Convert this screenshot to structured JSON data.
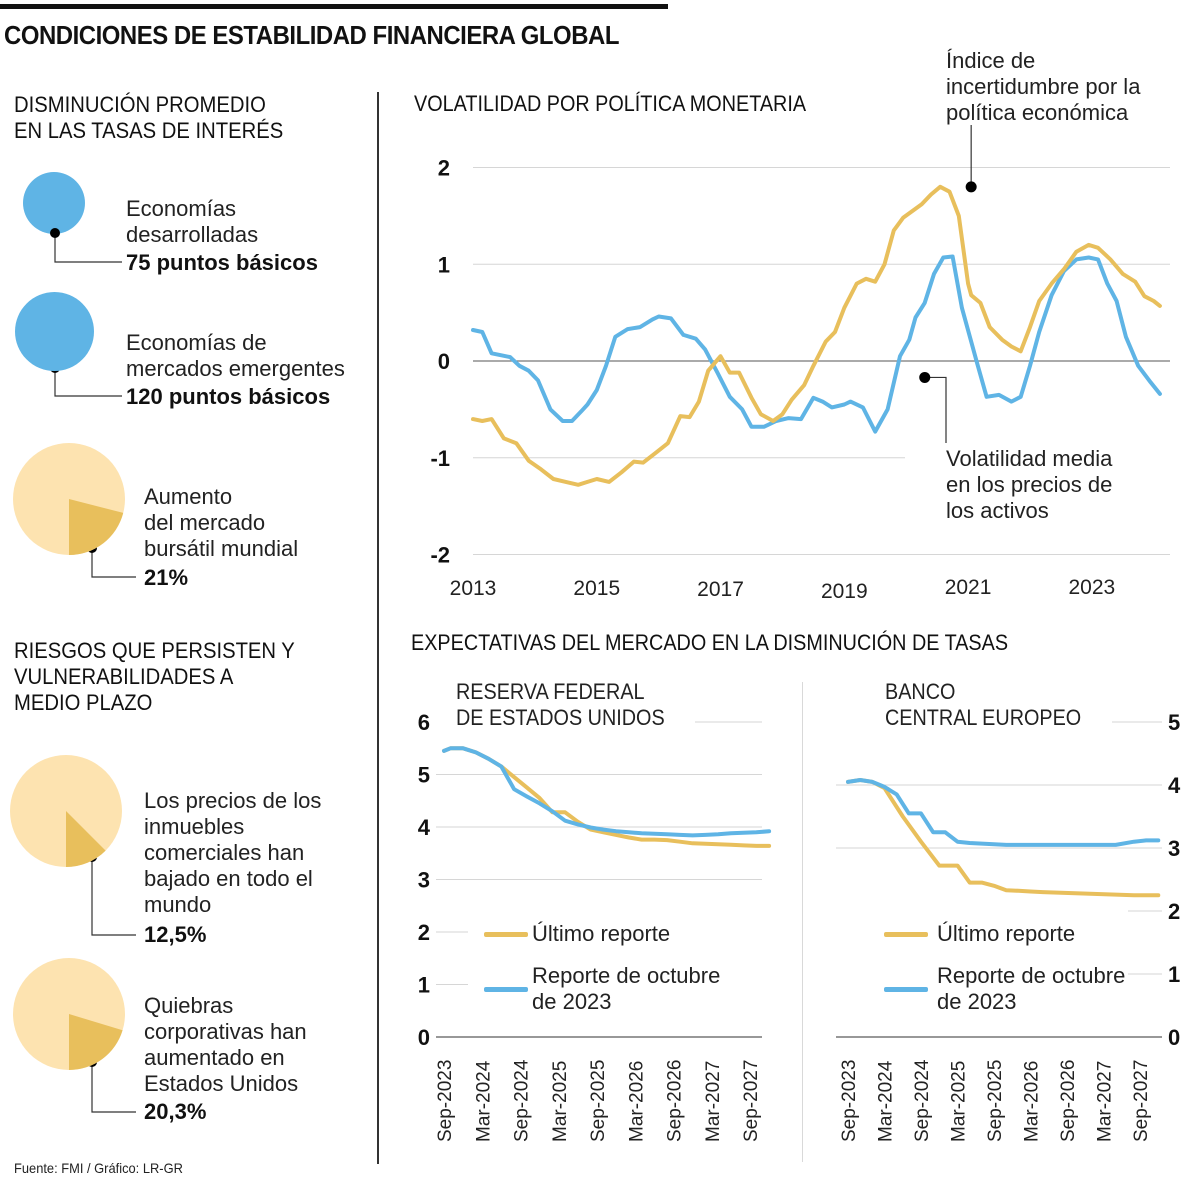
{
  "title": "CONDICIONES DE ESTABILIDAD FINANCIERA GLOBAL",
  "source": "Fuente: FMI / Gráfico: LR-GR",
  "colors": {
    "blue": "#5fb4e5",
    "gold": "#e8bf5c",
    "pie_light": "#fde3b0",
    "pie_dark": "#e8bf5c",
    "grid": "#d6d6d6",
    "zero_line": "#777777",
    "text": "#111111"
  },
  "left_panel": {
    "section1": {
      "title": "DISMINUCIÓN PROMEDIO\nEN LAS TASAS DE INTERÉS",
      "items": [
        {
          "label": "Economías\ndesarrolladas",
          "value": "75 puntos básicos",
          "basis_points": 75
        },
        {
          "label": "Economías de\nmercados emergentes",
          "value": "120 puntos básicos",
          "basis_points": 120
        }
      ]
    },
    "stock_item": {
      "label": "Aumento\ndel mercado\nbursátil mundial",
      "value": "21%",
      "percent": 21
    },
    "section2": {
      "title": "RIESGOS QUE PERSISTEN Y\nVULNERABILIDADES A\nMEDIO PLAZO",
      "items": [
        {
          "label": "Los precios de los\ninmuebles\ncomerciales han\nbajado en todo el\nmundo",
          "value": "12,5%",
          "percent": 12.5
        },
        {
          "label": "Quiebras\ncorporativas han\naumentado en\nEstados Unidos",
          "value": "20,3%",
          "percent": 20.3
        }
      ]
    }
  },
  "chart_data": [
    {
      "type": "line",
      "title": "VOLATILIDAD POR POLÍTICA MONETARIA",
      "xlabel": "",
      "ylabel": "",
      "xlim": [
        2013.0,
        2024.15
      ],
      "ylim": [
        -2,
        2
      ],
      "yticks": [
        2,
        1,
        0,
        -1,
        -2
      ],
      "ytick_labels": [
        "2",
        "1",
        "0",
        "-1",
        "-2"
      ],
      "xticks": [
        2013,
        2015,
        2017,
        2019,
        2021,
        2023
      ],
      "xtick_labels": [
        "2013",
        "2015",
        "2017",
        "2019",
        "2021",
        "2023"
      ],
      "grid": true,
      "annotations": [
        {
          "text": "Índice de\nincertidumbre por la\npolítica económica",
          "series": "Índice de incertidumbre por la política económica",
          "x": 2021.05,
          "y": 1.8
        },
        {
          "text": "Volatilidad media\nen los precios de\nlos activos",
          "series": "Volatilidad media en los precios de los activos",
          "x": 2020.3,
          "y": -0.17
        }
      ],
      "series": [
        {
          "name": "Volatilidad media en los precios de los activos",
          "color": "#5fb4e5",
          "x": [
            2013.0,
            2013.15,
            2013.3,
            2013.45,
            2013.6,
            2013.75,
            2013.9,
            2014.05,
            2014.25,
            2014.45,
            2014.6,
            2014.75,
            2014.85,
            2015.0,
            2015.15,
            2015.3,
            2015.5,
            2015.7,
            2015.9,
            2016.0,
            2016.2,
            2016.4,
            2016.6,
            2016.75,
            2016.95,
            2017.15,
            2017.35,
            2017.5,
            2017.7,
            2017.9,
            2018.1,
            2018.3,
            2018.5,
            2018.65,
            2018.8,
            2019.0,
            2019.1,
            2019.3,
            2019.5,
            2019.7,
            2019.9,
            2020.05,
            2020.15,
            2020.3,
            2020.45,
            2020.6,
            2020.75,
            2020.9,
            2021.05,
            2021.15,
            2021.3,
            2021.5,
            2021.7,
            2021.85,
            2022.0,
            2022.15,
            2022.35,
            2022.55,
            2022.75,
            2022.95,
            2023.1,
            2023.25,
            2023.4,
            2023.55,
            2023.75,
            2023.95,
            2024.1
          ],
          "values": [
            0.32,
            0.3,
            0.08,
            0.06,
            0.04,
            -0.05,
            -0.1,
            -0.2,
            -0.5,
            -0.62,
            -0.62,
            -0.52,
            -0.45,
            -0.3,
            -0.05,
            0.25,
            0.33,
            0.35,
            0.43,
            0.46,
            0.44,
            0.27,
            0.23,
            0.12,
            -0.12,
            -0.37,
            -0.5,
            -0.68,
            -0.68,
            -0.62,
            -0.59,
            -0.6,
            -0.38,
            -0.42,
            -0.48,
            -0.45,
            -0.42,
            -0.48,
            -0.73,
            -0.5,
            0.05,
            0.22,
            0.45,
            0.6,
            0.9,
            1.07,
            1.08,
            0.55,
            0.2,
            -0.03,
            -0.37,
            -0.35,
            -0.42,
            -0.37,
            -0.05,
            0.3,
            0.68,
            0.93,
            1.05,
            1.07,
            1.05,
            0.8,
            0.62,
            0.25,
            -0.05,
            -0.22,
            -0.34
          ]
        },
        {
          "name": "Índice de incertidumbre por la política económica",
          "color": "#e8bf5c",
          "x": [
            2013.0,
            2013.15,
            2013.3,
            2013.5,
            2013.7,
            2013.9,
            2014.1,
            2014.3,
            2014.5,
            2014.7,
            2014.85,
            2015.0,
            2015.2,
            2015.4,
            2015.6,
            2015.75,
            2015.95,
            2016.15,
            2016.35,
            2016.5,
            2016.65,
            2016.8,
            2017.0,
            2017.15,
            2017.3,
            2017.5,
            2017.65,
            2017.85,
            2018.0,
            2018.15,
            2018.35,
            2018.5,
            2018.7,
            2018.85,
            2019.0,
            2019.2,
            2019.35,
            2019.5,
            2019.65,
            2019.8,
            2019.95,
            2020.1,
            2020.25,
            2020.4,
            2020.55,
            2020.7,
            2020.85,
            2021.0,
            2021.05,
            2021.2,
            2021.35,
            2021.55,
            2021.7,
            2021.85,
            2022.0,
            2022.15,
            2022.35,
            2022.55,
            2022.75,
            2022.95,
            2023.1,
            2023.3,
            2023.5,
            2023.7,
            2023.85,
            2024.0,
            2024.1
          ],
          "values": [
            -0.6,
            -0.62,
            -0.6,
            -0.8,
            -0.85,
            -1.03,
            -1.12,
            -1.22,
            -1.25,
            -1.28,
            -1.25,
            -1.22,
            -1.25,
            -1.15,
            -1.04,
            -1.05,
            -0.95,
            -0.85,
            -0.57,
            -0.58,
            -0.42,
            -0.1,
            0.05,
            -0.12,
            -0.12,
            -0.38,
            -0.55,
            -0.62,
            -0.55,
            -0.4,
            -0.25,
            -0.05,
            0.2,
            0.3,
            0.55,
            0.8,
            0.85,
            0.82,
            1.0,
            1.35,
            1.48,
            1.55,
            1.62,
            1.72,
            1.8,
            1.75,
            1.5,
            0.8,
            0.68,
            0.6,
            0.35,
            0.22,
            0.15,
            0.1,
            0.35,
            0.62,
            0.8,
            0.95,
            1.13,
            1.2,
            1.17,
            1.05,
            0.9,
            0.82,
            0.67,
            0.62,
            0.57
          ]
        }
      ]
    },
    {
      "type": "line",
      "title": "RESERVA FEDERAL\nDE ESTADOS UNIDOS",
      "group_title": "EXPECTATIVAS DEL MERCADO EN LA DISMINUCIÓN DE TASAS",
      "ylim": [
        0,
        6
      ],
      "yticks": [
        6,
        5,
        4,
        3,
        2,
        1,
        0
      ],
      "ytick_labels": [
        "6",
        "5",
        "4",
        "3",
        "2",
        "1",
        "0"
      ],
      "categories": [
        "Sep-2023",
        "Mar-2024",
        "Sep-2024",
        "Mar-2025",
        "Sep-2025",
        "Mar-2026",
        "Sep-2026",
        "Mar-2027",
        "Sep-2027"
      ],
      "x_range_months": [
        0,
        52
      ],
      "grid": true,
      "legend": "bottom-center",
      "series": [
        {
          "name": "Último reporte",
          "color": "#e8bf5c",
          "x_months": [
            0,
            1,
            3,
            5,
            7,
            9,
            11,
            13,
            15,
            17,
            19,
            21,
            23,
            25,
            27,
            29,
            31,
            33,
            35,
            37,
            39,
            41,
            43,
            45,
            47,
            49,
            51
          ],
          "values": [
            5.45,
            5.5,
            5.5,
            5.42,
            5.3,
            5.15,
            4.95,
            4.75,
            4.55,
            4.28,
            4.28,
            4.1,
            3.95,
            3.9,
            3.85,
            3.8,
            3.76,
            3.76,
            3.75,
            3.72,
            3.69,
            3.68,
            3.67,
            3.66,
            3.65,
            3.64,
            3.64
          ]
        },
        {
          "name": "Reporte de octubre de 2023",
          "color": "#5fb4e5",
          "x_months": [
            0,
            1,
            3,
            5,
            7,
            9,
            11,
            13,
            15,
            17,
            19,
            21,
            23,
            25,
            27,
            29,
            31,
            33,
            35,
            37,
            39,
            41,
            43,
            45,
            47,
            49,
            51
          ],
          "values": [
            5.45,
            5.5,
            5.5,
            5.42,
            5.3,
            5.15,
            4.72,
            4.58,
            4.45,
            4.3,
            4.12,
            4.05,
            3.99,
            3.95,
            3.92,
            3.9,
            3.88,
            3.87,
            3.86,
            3.85,
            3.84,
            3.85,
            3.86,
            3.88,
            3.89,
            3.9,
            3.92
          ]
        }
      ]
    },
    {
      "type": "line",
      "title": "BANCO\nCENTRAL EUROPEO",
      "ylim": [
        0,
        5
      ],
      "yticks": [
        5,
        4,
        3,
        2,
        1,
        0
      ],
      "ytick_labels": [
        "5",
        "4",
        "3",
        "2",
        "1",
        "0"
      ],
      "categories": [
        "Sep-2023",
        "Mar-2024",
        "Sep-2024",
        "Mar-2025",
        "Sep-2025",
        "Mar-2026",
        "Sep-2026",
        "Mar-2027",
        "Sep-2027"
      ],
      "x_range_months": [
        0,
        52
      ],
      "grid": true,
      "legend": "bottom-center",
      "series": [
        {
          "name": "Último reporte",
          "color": "#e8bf5c",
          "x_months": [
            0,
            2,
            4,
            6,
            9,
            12,
            15,
            18,
            20,
            22,
            24,
            26,
            28,
            30,
            32,
            35,
            38,
            41,
            44,
            47,
            49,
            51
          ],
          "values": [
            4.05,
            4.08,
            4.05,
            3.95,
            3.5,
            3.1,
            2.72,
            2.72,
            2.45,
            2.45,
            2.4,
            2.33,
            2.32,
            2.31,
            2.3,
            2.29,
            2.28,
            2.27,
            2.26,
            2.25,
            2.25,
            2.25
          ]
        },
        {
          "name": "Reporte de octubre de 2023",
          "color": "#5fb4e5",
          "x_months": [
            0,
            2,
            4,
            6,
            8,
            10,
            12,
            14,
            16,
            18,
            20,
            22,
            24,
            26,
            28,
            30,
            32,
            35,
            38,
            41,
            44,
            47,
            49,
            51
          ],
          "values": [
            4.05,
            4.08,
            4.05,
            3.97,
            3.85,
            3.55,
            3.55,
            3.25,
            3.25,
            3.1,
            3.08,
            3.07,
            3.06,
            3.05,
            3.05,
            3.05,
            3.05,
            3.05,
            3.05,
            3.05,
            3.05,
            3.1,
            3.12,
            3.12
          ]
        }
      ]
    }
  ]
}
